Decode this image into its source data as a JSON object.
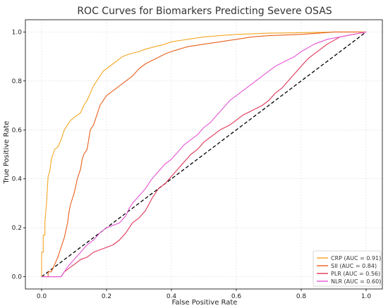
{
  "chart_data": {
    "type": "line",
    "title": "ROC Curves for Biomarkers Predicting Severe OSAS",
    "xlabel": "False Positive Rate",
    "ylabel": "True Positive Rate",
    "xlim": [
      -0.05,
      1.05
    ],
    "ylim": [
      -0.05,
      1.05
    ],
    "xticks": [
      "0.0",
      "0.2",
      "0.4",
      "0.6",
      "0.8",
      "1.0"
    ],
    "yticks": [
      "0.0",
      "0.2",
      "0.4",
      "0.6",
      "0.8",
      "1.0"
    ],
    "grid": true,
    "legend_position": "bottom-right",
    "series": [
      {
        "name": "CRP (AUC = 0.91)",
        "color": "#f5a623",
        "points": [
          [
            0,
            0
          ],
          [
            0,
            0.1
          ],
          [
            0.005,
            0.1
          ],
          [
            0.005,
            0.17
          ],
          [
            0.01,
            0.17
          ],
          [
            0.01,
            0.22
          ],
          [
            0.015,
            0.3
          ],
          [
            0.02,
            0.41
          ],
          [
            0.025,
            0.43
          ],
          [
            0.03,
            0.48
          ],
          [
            0.035,
            0.5
          ],
          [
            0.04,
            0.52
          ],
          [
            0.05,
            0.53
          ],
          [
            0.06,
            0.56
          ],
          [
            0.065,
            0.58
          ],
          [
            0.07,
            0.6
          ],
          [
            0.08,
            0.62
          ],
          [
            0.09,
            0.64
          ],
          [
            0.1,
            0.65
          ],
          [
            0.11,
            0.66
          ],
          [
            0.12,
            0.67
          ],
          [
            0.13,
            0.7
          ],
          [
            0.14,
            0.72
          ],
          [
            0.15,
            0.75
          ],
          [
            0.16,
            0.78
          ],
          [
            0.17,
            0.8
          ],
          [
            0.18,
            0.82
          ],
          [
            0.19,
            0.84
          ],
          [
            0.2,
            0.85
          ],
          [
            0.22,
            0.87
          ],
          [
            0.24,
            0.89
          ],
          [
            0.25,
            0.9
          ],
          [
            0.27,
            0.91
          ],
          [
            0.3,
            0.92
          ],
          [
            0.32,
            0.93
          ],
          [
            0.35,
            0.94
          ],
          [
            0.38,
            0.95
          ],
          [
            0.4,
            0.96
          ],
          [
            0.45,
            0.97
          ],
          [
            0.5,
            0.98
          ],
          [
            0.55,
            0.985
          ],
          [
            0.6,
            0.99
          ],
          [
            0.7,
            0.995
          ],
          [
            0.8,
            0.997
          ],
          [
            0.9,
            1.0
          ],
          [
            1.0,
            1.0
          ]
        ]
      },
      {
        "name": "SII (AUC = 0.84)",
        "color": "#e8601c",
        "points": [
          [
            0,
            0
          ],
          [
            0.02,
            0
          ],
          [
            0.02,
            0.02
          ],
          [
            0.03,
            0.02
          ],
          [
            0.04,
            0.05
          ],
          [
            0.05,
            0.08
          ],
          [
            0.06,
            0.12
          ],
          [
            0.07,
            0.16
          ],
          [
            0.08,
            0.22
          ],
          [
            0.085,
            0.27
          ],
          [
            0.09,
            0.3
          ],
          [
            0.1,
            0.34
          ],
          [
            0.11,
            0.4
          ],
          [
            0.12,
            0.44
          ],
          [
            0.125,
            0.48
          ],
          [
            0.13,
            0.5
          ],
          [
            0.14,
            0.52
          ],
          [
            0.145,
            0.56
          ],
          [
            0.15,
            0.6
          ],
          [
            0.16,
            0.62
          ],
          [
            0.17,
            0.66
          ],
          [
            0.18,
            0.7
          ],
          [
            0.19,
            0.72
          ],
          [
            0.2,
            0.74
          ],
          [
            0.22,
            0.76
          ],
          [
            0.24,
            0.78
          ],
          [
            0.26,
            0.8
          ],
          [
            0.28,
            0.82
          ],
          [
            0.3,
            0.85
          ],
          [
            0.32,
            0.87
          ],
          [
            0.35,
            0.89
          ],
          [
            0.38,
            0.91
          ],
          [
            0.4,
            0.92
          ],
          [
            0.45,
            0.94
          ],
          [
            0.5,
            0.95
          ],
          [
            0.55,
            0.96
          ],
          [
            0.6,
            0.97
          ],
          [
            0.65,
            0.98
          ],
          [
            0.7,
            0.985
          ],
          [
            0.8,
            0.99
          ],
          [
            0.9,
            1.0
          ],
          [
            1.0,
            1.0
          ]
        ]
      },
      {
        "name": "PLR (AUC = 0.56)",
        "color": "#e0365a",
        "points": [
          [
            0,
            0
          ],
          [
            0.06,
            0
          ],
          [
            0.07,
            0.02
          ],
          [
            0.08,
            0.03
          ],
          [
            0.1,
            0.05
          ],
          [
            0.12,
            0.07
          ],
          [
            0.14,
            0.08
          ],
          [
            0.16,
            0.1
          ],
          [
            0.18,
            0.11
          ],
          [
            0.2,
            0.12
          ],
          [
            0.22,
            0.13
          ],
          [
            0.24,
            0.15
          ],
          [
            0.26,
            0.18
          ],
          [
            0.27,
            0.2
          ],
          [
            0.28,
            0.22
          ],
          [
            0.3,
            0.24
          ],
          [
            0.32,
            0.27
          ],
          [
            0.34,
            0.32
          ],
          [
            0.36,
            0.36
          ],
          [
            0.38,
            0.38
          ],
          [
            0.4,
            0.41
          ],
          [
            0.42,
            0.44
          ],
          [
            0.44,
            0.47
          ],
          [
            0.46,
            0.5
          ],
          [
            0.48,
            0.52
          ],
          [
            0.5,
            0.55
          ],
          [
            0.52,
            0.57
          ],
          [
            0.55,
            0.6
          ],
          [
            0.58,
            0.62
          ],
          [
            0.6,
            0.64
          ],
          [
            0.62,
            0.66
          ],
          [
            0.65,
            0.68
          ],
          [
            0.68,
            0.7
          ],
          [
            0.7,
            0.72
          ],
          [
            0.72,
            0.75
          ],
          [
            0.74,
            0.77
          ],
          [
            0.76,
            0.8
          ],
          [
            0.78,
            0.83
          ],
          [
            0.8,
            0.86
          ],
          [
            0.82,
            0.89
          ],
          [
            0.85,
            0.92
          ],
          [
            0.88,
            0.95
          ],
          [
            0.92,
            0.98
          ],
          [
            0.96,
            0.99
          ],
          [
            1.0,
            1.0
          ]
        ]
      },
      {
        "name": "NLR (AUC = 0.60)",
        "color": "#e556d6",
        "points": [
          [
            0,
            0
          ],
          [
            0.06,
            0
          ],
          [
            0.07,
            0.02
          ],
          [
            0.08,
            0.04
          ],
          [
            0.1,
            0.07
          ],
          [
            0.12,
            0.1
          ],
          [
            0.14,
            0.13
          ],
          [
            0.16,
            0.15
          ],
          [
            0.18,
            0.18
          ],
          [
            0.2,
            0.2
          ],
          [
            0.22,
            0.21
          ],
          [
            0.24,
            0.22
          ],
          [
            0.26,
            0.25
          ],
          [
            0.27,
            0.28
          ],
          [
            0.28,
            0.3
          ],
          [
            0.3,
            0.33
          ],
          [
            0.32,
            0.36
          ],
          [
            0.34,
            0.4
          ],
          [
            0.36,
            0.43
          ],
          [
            0.38,
            0.46
          ],
          [
            0.4,
            0.48
          ],
          [
            0.42,
            0.51
          ],
          [
            0.44,
            0.54
          ],
          [
            0.46,
            0.56
          ],
          [
            0.48,
            0.58
          ],
          [
            0.5,
            0.61
          ],
          [
            0.52,
            0.63
          ],
          [
            0.54,
            0.66
          ],
          [
            0.56,
            0.69
          ],
          [
            0.58,
            0.72
          ],
          [
            0.6,
            0.74
          ],
          [
            0.62,
            0.76
          ],
          [
            0.64,
            0.78
          ],
          [
            0.66,
            0.8
          ],
          [
            0.68,
            0.82
          ],
          [
            0.7,
            0.84
          ],
          [
            0.72,
            0.86
          ],
          [
            0.75,
            0.88
          ],
          [
            0.78,
            0.9
          ],
          [
            0.8,
            0.92
          ],
          [
            0.84,
            0.95
          ],
          [
            0.88,
            0.97
          ],
          [
            0.92,
            0.98
          ],
          [
            0.96,
            0.99
          ],
          [
            1.0,
            1.0
          ]
        ]
      }
    ],
    "reference_line": {
      "points": [
        [
          0,
          0
        ],
        [
          1,
          1
        ]
      ],
      "color": "#000000",
      "style": "dashed"
    }
  }
}
